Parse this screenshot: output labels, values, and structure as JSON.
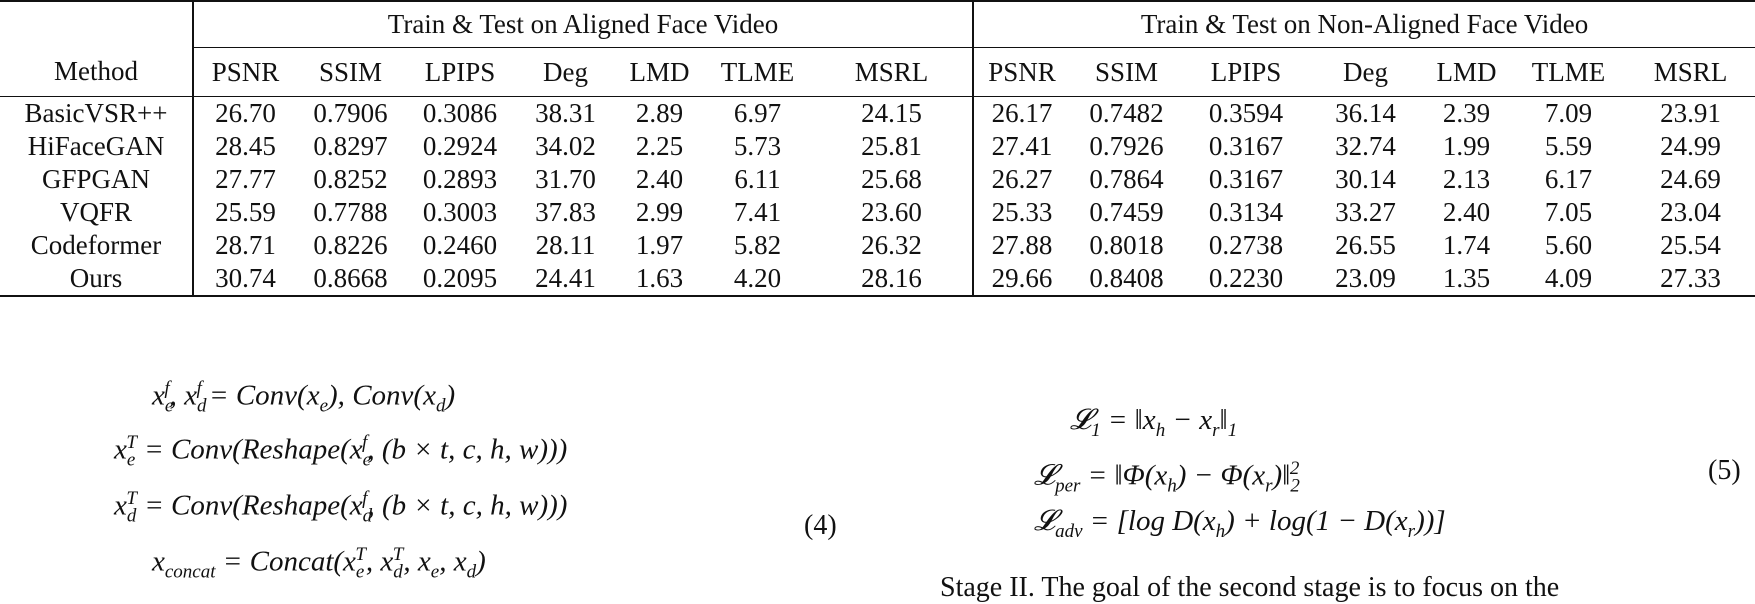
{
  "table": {
    "groups": [
      "Train & Test on Aligned Face Video",
      "Train & Test on Non-Aligned Face Video"
    ],
    "method_header": "Method",
    "metrics": [
      "PSNR",
      "SSIM",
      "LPIPS",
      "Deg",
      "LMD",
      "TLME",
      "MSRL"
    ],
    "rows": [
      {
        "method": "BasicVSR++",
        "aligned": [
          "26.70",
          "0.7906",
          "0.3086",
          "38.31",
          "2.89",
          "6.97",
          "24.15"
        ],
        "nonaligned": [
          "26.17",
          "0.7482",
          "0.3594",
          "36.14",
          "2.39",
          "7.09",
          "23.91"
        ],
        "bold": false
      },
      {
        "method": "HiFaceGAN",
        "aligned": [
          "28.45",
          "0.8297",
          "0.2924",
          "34.02",
          "2.25",
          "5.73",
          "25.81"
        ],
        "nonaligned": [
          "27.41",
          "0.7926",
          "0.3167",
          "32.74",
          "1.99",
          "5.59",
          "24.99"
        ],
        "bold": false
      },
      {
        "method": "GFPGAN",
        "aligned": [
          "27.77",
          "0.8252",
          "0.2893",
          "31.70",
          "2.40",
          "6.11",
          "25.68"
        ],
        "nonaligned": [
          "26.27",
          "0.7864",
          "0.3167",
          "30.14",
          "2.13",
          "6.17",
          "24.69"
        ],
        "bold": false
      },
      {
        "method": "VQFR",
        "aligned": [
          "25.59",
          "0.7788",
          "0.3003",
          "37.83",
          "2.99",
          "7.41",
          "23.60"
        ],
        "nonaligned": [
          "25.33",
          "0.7459",
          "0.3134",
          "33.27",
          "2.40",
          "7.05",
          "23.04"
        ],
        "bold": false
      },
      {
        "method": "Codeformer",
        "aligned": [
          "28.71",
          "0.8226",
          "0.2460",
          "28.11",
          "1.97",
          "5.82",
          "26.32"
        ],
        "nonaligned": [
          "27.88",
          "0.8018",
          "0.2738",
          "26.55",
          "1.74",
          "5.60",
          "25.54"
        ],
        "bold": false
      },
      {
        "method": "Ours",
        "aligned": [
          "30.74",
          "0.8668",
          "0.2095",
          "24.41",
          "1.63",
          "4.20",
          "28.16"
        ],
        "nonaligned": [
          "29.66",
          "0.8408",
          "0.2230",
          "23.09",
          "1.35",
          "4.09",
          "27.33"
        ],
        "bold": true
      }
    ]
  },
  "equations": {
    "eq4": {
      "lines": [
        "x_e^f, x_d^f = Conv(x_e), Conv(x_d)",
        "x_e^T = Conv(Reshape(x_e^f, (b × t, c, h, w)))",
        "x_d^T = Conv(Reshape(x_d^f, (b × t, c, h, w)))",
        "x_concat = Concat(x_e^T, x_d^T, x_e, x_d)"
      ],
      "number": "(4)"
    },
    "eq5": {
      "lines": [
        "L_1 = ||x_h − x_r||_1",
        "L_per = ||Φ(x_h) − Φ(x_r)||_2^2",
        "L_adv = [log D(x_h) + log(1 − D(x_r))]"
      ],
      "number": "(5)"
    }
  },
  "body_text": "Stage II. The goal of the second stage is to focus on the"
}
